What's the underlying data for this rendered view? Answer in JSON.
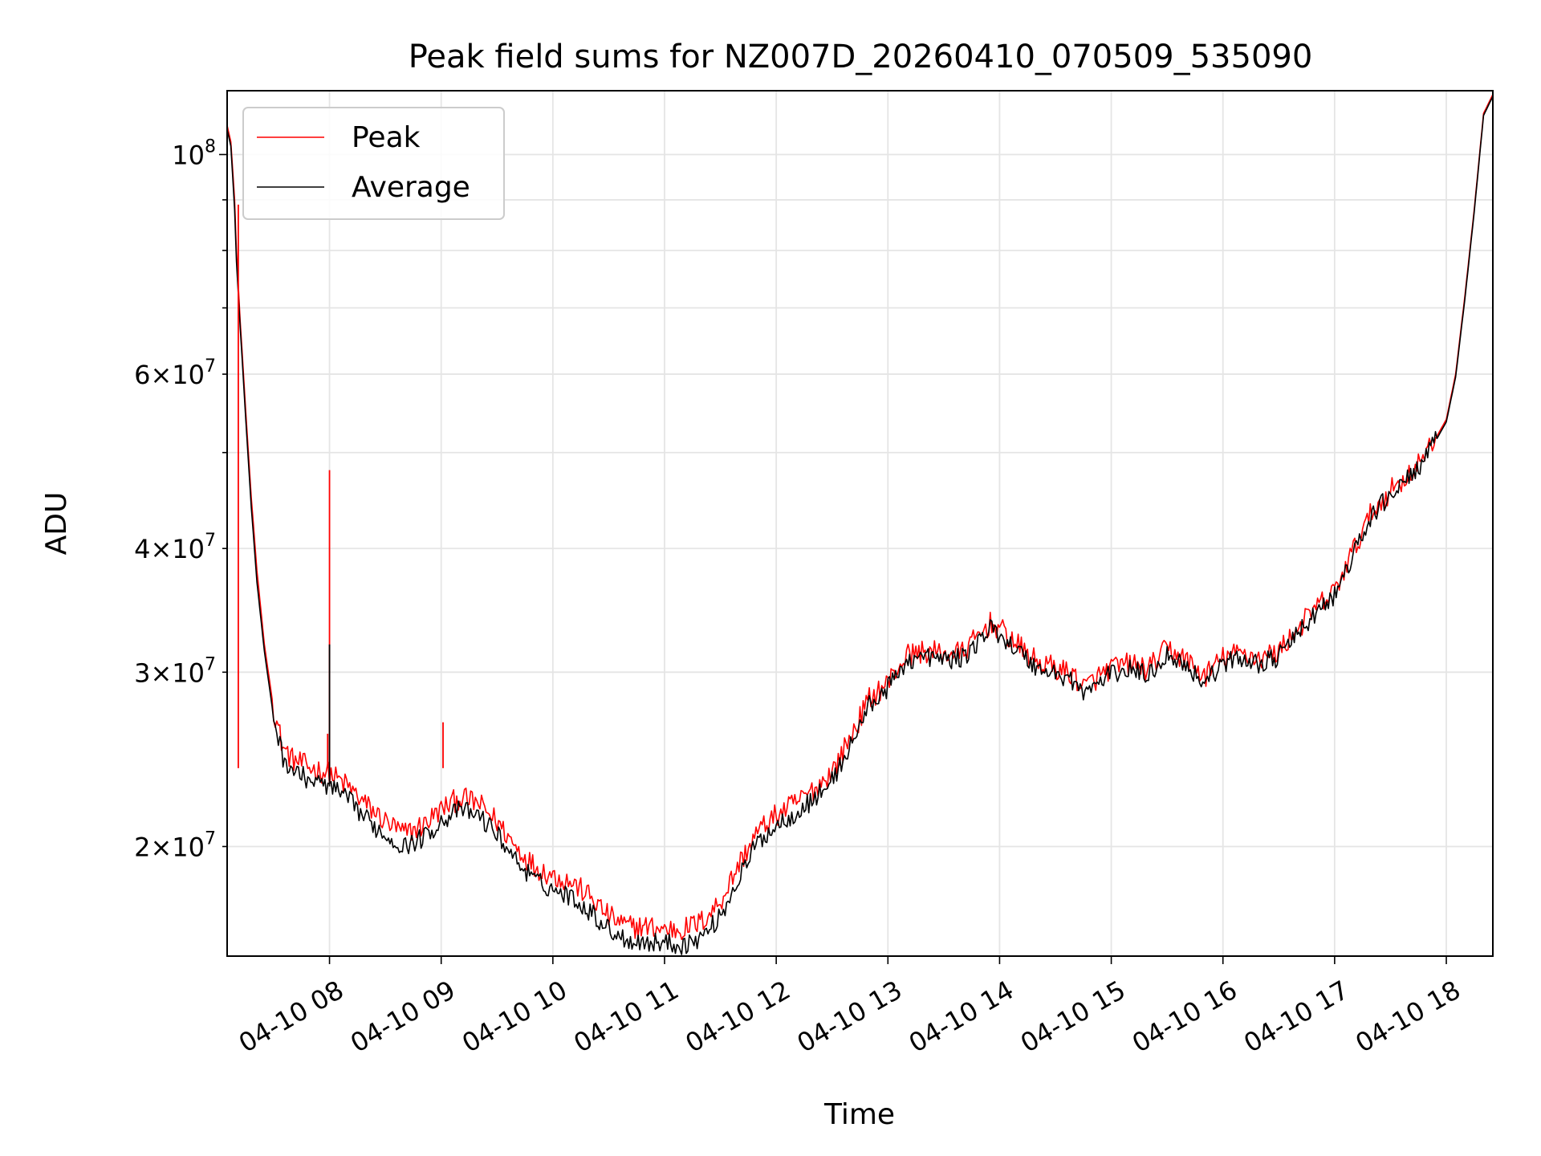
{
  "chart_data": {
    "type": "line",
    "title": "Peak field sums for NZ007D_20260410_070509_535090",
    "xlabel": "Time",
    "ylabel": "ADU",
    "xlim": [
      "2026-04-10 07:05",
      "2026-04-10 18:25"
    ],
    "x_scale": "time",
    "y_scale": "log",
    "ylim": [
      15500000,
      116000000
    ],
    "grid": true,
    "legend_position": "upper-left",
    "x_ticks": [
      {
        "value": "2026-04-10 08:00",
        "label": "04-10 08"
      },
      {
        "value": "2026-04-10 09:00",
        "label": "04-10 09"
      },
      {
        "value": "2026-04-10 10:00",
        "label": "04-10 10"
      },
      {
        "value": "2026-04-10 11:00",
        "label": "04-10 11"
      },
      {
        "value": "2026-04-10 12:00",
        "label": "04-10 12"
      },
      {
        "value": "2026-04-10 13:00",
        "label": "04-10 13"
      },
      {
        "value": "2026-04-10 14:00",
        "label": "04-10 14"
      },
      {
        "value": "2026-04-10 15:00",
        "label": "04-10 15"
      },
      {
        "value": "2026-04-10 16:00",
        "label": "04-10 16"
      },
      {
        "value": "2026-04-10 17:00",
        "label": "04-10 17"
      },
      {
        "value": "2026-04-10 18:00",
        "label": "04-10 18"
      }
    ],
    "y_major_ticks": [
      {
        "value": 100000000,
        "mantissa": "",
        "base": "10",
        "exp": "8"
      }
    ],
    "y_minor_ticks": [
      {
        "value": 20000000,
        "mantissa": "2×",
        "base": "10",
        "exp": "7"
      },
      {
        "value": 30000000,
        "mantissa": "3×",
        "base": "10",
        "exp": "7"
      },
      {
        "value": 40000000,
        "mantissa": "4×",
        "base": "10",
        "exp": "7"
      },
      {
        "value": 50000000,
        "mantissa": "",
        "base": "",
        "exp": ""
      },
      {
        "value": 60000000,
        "mantissa": "6×",
        "base": "10",
        "exp": "7"
      },
      {
        "value": 70000000,
        "mantissa": "",
        "base": "",
        "exp": ""
      },
      {
        "value": 80000000,
        "mantissa": "",
        "base": "",
        "exp": ""
      },
      {
        "value": 90000000,
        "mantissa": "",
        "base": "",
        "exp": ""
      }
    ],
    "series": [
      {
        "name": "Peak",
        "color": "#ff0000",
        "points": [
          [
            "2026-04-10 07:05",
            107000000
          ],
          [
            "2026-04-10 07:07",
            103000000
          ],
          [
            "2026-04-10 07:09",
            90000000
          ],
          [
            "2026-04-10 07:10",
            80000000
          ],
          [
            "2026-04-10 07:12",
            68000000
          ],
          [
            "2026-04-10 07:15",
            55000000
          ],
          [
            "2026-04-10 07:18",
            45000000
          ],
          [
            "2026-04-10 07:21",
            38000000
          ],
          [
            "2026-04-10 07:25",
            32000000
          ],
          [
            "2026-04-10 07:30",
            27500000
          ],
          [
            "2026-04-10 07:35",
            25200000
          ],
          [
            "2026-04-10 07:40",
            24500000
          ],
          [
            "2026-04-10 07:50",
            24000000
          ],
          [
            "2026-04-10 08:00",
            23700000
          ],
          [
            "2026-04-10 08:10",
            23000000
          ],
          [
            "2026-04-10 08:20",
            22000000
          ],
          [
            "2026-04-10 08:30",
            21200000
          ],
          [
            "2026-04-10 08:40",
            20600000
          ],
          [
            "2026-04-10 08:50",
            21000000
          ],
          [
            "2026-04-10 09:00",
            21800000
          ],
          [
            "2026-04-10 09:10",
            22400000
          ],
          [
            "2026-04-10 09:20",
            22100000
          ],
          [
            "2026-04-10 09:30",
            21200000
          ],
          [
            "2026-04-10 09:40",
            20000000
          ],
          [
            "2026-04-10 09:50",
            19100000
          ],
          [
            "2026-04-10 10:00",
            18700000
          ],
          [
            "2026-04-10 10:10",
            18400000
          ],
          [
            "2026-04-10 10:20",
            17800000
          ],
          [
            "2026-04-10 10:30",
            17000000
          ],
          [
            "2026-04-10 10:40",
            16600000
          ],
          [
            "2026-04-10 10:50",
            16600000
          ],
          [
            "2026-04-10 11:00",
            16500000
          ],
          [
            "2026-04-10 11:10",
            16500000
          ],
          [
            "2026-04-10 11:20",
            16800000
          ],
          [
            "2026-04-10 11:30",
            17600000
          ],
          [
            "2026-04-10 11:40",
            19200000
          ],
          [
            "2026-04-10 11:50",
            20700000
          ],
          [
            "2026-04-10 12:00",
            21500000
          ],
          [
            "2026-04-10 12:10",
            22100000
          ],
          [
            "2026-04-10 12:20",
            22800000
          ],
          [
            "2026-04-10 12:30",
            23800000
          ],
          [
            "2026-04-10 12:40",
            25800000
          ],
          [
            "2026-04-10 12:50",
            28200000
          ],
          [
            "2026-04-10 13:00",
            29300000
          ],
          [
            "2026-04-10 13:10",
            31200000
          ],
          [
            "2026-04-10 13:20",
            31500000
          ],
          [
            "2026-04-10 13:30",
            31300000
          ],
          [
            "2026-04-10 13:40",
            31400000
          ],
          [
            "2026-04-10 13:50",
            32800000
          ],
          [
            "2026-04-10 13:55",
            33600000
          ],
          [
            "2026-04-10 14:00",
            33200000
          ],
          [
            "2026-04-10 14:10",
            31900000
          ],
          [
            "2026-04-10 14:20",
            30700000
          ],
          [
            "2026-04-10 14:30",
            30300000
          ],
          [
            "2026-04-10 14:40",
            29800000
          ],
          [
            "2026-04-10 14:45",
            28900000
          ],
          [
            "2026-04-10 14:50",
            29400000
          ],
          [
            "2026-04-10 15:00",
            30300000
          ],
          [
            "2026-04-10 15:10",
            30600000
          ],
          [
            "2026-04-10 15:20",
            30200000
          ],
          [
            "2026-04-10 15:30",
            31700000
          ],
          [
            "2026-04-10 15:40",
            30900000
          ],
          [
            "2026-04-10 15:50",
            29700000
          ],
          [
            "2026-04-10 16:00",
            31000000
          ],
          [
            "2026-04-10 16:10",
            31400000
          ],
          [
            "2026-04-10 16:20",
            31000000
          ],
          [
            "2026-04-10 16:30",
            31500000
          ],
          [
            "2026-04-10 16:40",
            33200000
          ],
          [
            "2026-04-10 16:50",
            34800000
          ],
          [
            "2026-04-10 17:00",
            36200000
          ],
          [
            "2026-04-10 17:10",
            39800000
          ],
          [
            "2026-04-10 17:20",
            43500000
          ],
          [
            "2026-04-10 17:30",
            45800000
          ],
          [
            "2026-04-10 17:40",
            47500000
          ],
          [
            "2026-04-10 17:50",
            50000000
          ],
          [
            "2026-04-10 18:00",
            54000000
          ],
          [
            "2026-04-10 18:05",
            60000000
          ],
          [
            "2026-04-10 18:10",
            72000000
          ],
          [
            "2026-04-10 18:15",
            88000000
          ],
          [
            "2026-04-10 18:20",
            110000000
          ],
          [
            "2026-04-10 18:25",
            115000000
          ]
        ]
      },
      {
        "name": "Average",
        "color": "#000000",
        "points": [
          [
            "2026-04-10 07:05",
            106000000
          ],
          [
            "2026-04-10 07:07",
            102000000
          ],
          [
            "2026-04-10 07:09",
            88000000
          ],
          [
            "2026-04-10 07:10",
            78000000
          ],
          [
            "2026-04-10 07:12",
            67000000
          ],
          [
            "2026-04-10 07:15",
            54000000
          ],
          [
            "2026-04-10 07:18",
            44000000
          ],
          [
            "2026-04-10 07:21",
            37000000
          ],
          [
            "2026-04-10 07:25",
            31500000
          ],
          [
            "2026-04-10 07:30",
            27000000
          ],
          [
            "2026-04-10 07:35",
            24600000
          ],
          [
            "2026-04-10 07:40",
            23900000
          ],
          [
            "2026-04-10 07:50",
            23300000
          ],
          [
            "2026-04-10 08:00",
            23000000
          ],
          [
            "2026-04-10 08:10",
            22300000
          ],
          [
            "2026-04-10 08:20",
            21300000
          ],
          [
            "2026-04-10 08:30",
            20500000
          ],
          [
            "2026-04-10 08:40",
            20000000
          ],
          [
            "2026-04-10 08:50",
            20400000
          ],
          [
            "2026-04-10 09:00",
            21200000
          ],
          [
            "2026-04-10 09:10",
            21800000
          ],
          [
            "2026-04-10 09:20",
            21500000
          ],
          [
            "2026-04-10 09:30",
            20600000
          ],
          [
            "2026-04-10 09:40",
            19400000
          ],
          [
            "2026-04-10 09:50",
            18500000
          ],
          [
            "2026-04-10 10:00",
            18100000
          ],
          [
            "2026-04-10 10:10",
            17800000
          ],
          [
            "2026-04-10 10:20",
            17200000
          ],
          [
            "2026-04-10 10:30",
            16500000
          ],
          [
            "2026-04-10 10:40",
            16100000
          ],
          [
            "2026-04-10 10:50",
            16000000
          ],
          [
            "2026-04-10 11:00",
            16000000
          ],
          [
            "2026-04-10 11:10",
            15900000
          ],
          [
            "2026-04-10 11:20",
            16200000
          ],
          [
            "2026-04-10 11:30",
            17000000
          ],
          [
            "2026-04-10 11:40",
            18600000
          ],
          [
            "2026-04-10 11:50",
            20200000
          ],
          [
            "2026-04-10 12:00",
            21000000
          ],
          [
            "2026-04-10 12:10",
            21600000
          ],
          [
            "2026-04-10 12:20",
            22300000
          ],
          [
            "2026-04-10 12:30",
            23300000
          ],
          [
            "2026-04-10 12:40",
            25300000
          ],
          [
            "2026-04-10 12:50",
            27800000
          ],
          [
            "2026-04-10 13:00",
            28900000
          ],
          [
            "2026-04-10 13:10",
            30800000
          ],
          [
            "2026-04-10 13:20",
            31100000
          ],
          [
            "2026-04-10 13:30",
            30900000
          ],
          [
            "2026-04-10 13:40",
            31000000
          ],
          [
            "2026-04-10 13:50",
            32400000
          ],
          [
            "2026-04-10 13:55",
            33200000
          ],
          [
            "2026-04-10 14:00",
            32800000
          ],
          [
            "2026-04-10 14:10",
            31500000
          ],
          [
            "2026-04-10 14:20",
            30300000
          ],
          [
            "2026-04-10 14:30",
            29900000
          ],
          [
            "2026-04-10 14:40",
            29400000
          ],
          [
            "2026-04-10 14:45",
            28500000
          ],
          [
            "2026-04-10 14:50",
            29000000
          ],
          [
            "2026-04-10 15:00",
            29900000
          ],
          [
            "2026-04-10 15:10",
            30200000
          ],
          [
            "2026-04-10 15:20",
            29800000
          ],
          [
            "2026-04-10 15:30",
            31300000
          ],
          [
            "2026-04-10 15:40",
            30500000
          ],
          [
            "2026-04-10 15:50",
            29300000
          ],
          [
            "2026-04-10 16:00",
            30600000
          ],
          [
            "2026-04-10 16:10",
            31000000
          ],
          [
            "2026-04-10 16:20",
            30600000
          ],
          [
            "2026-04-10 16:30",
            31100000
          ],
          [
            "2026-04-10 16:40",
            32800000
          ],
          [
            "2026-04-10 16:50",
            34400000
          ],
          [
            "2026-04-10 17:00",
            35800000
          ],
          [
            "2026-04-10 17:10",
            39400000
          ],
          [
            "2026-04-10 17:20",
            43100000
          ],
          [
            "2026-04-10 17:30",
            45400000
          ],
          [
            "2026-04-10 17:40",
            47100000
          ],
          [
            "2026-04-10 17:50",
            49700000
          ],
          [
            "2026-04-10 18:00",
            53700000
          ],
          [
            "2026-04-10 18:05",
            59600000
          ],
          [
            "2026-04-10 18:10",
            71500000
          ],
          [
            "2026-04-10 18:15",
            87500000
          ],
          [
            "2026-04-10 18:20",
            109500000
          ],
          [
            "2026-04-10 18:25",
            114500000
          ]
        ]
      }
    ],
    "annotations": [
      {
        "series": "Peak",
        "x": "2026-04-10 07:11",
        "y": 89000000
      },
      {
        "series": "Peak",
        "x": "2026-04-10 07:59",
        "y": 26000000
      },
      {
        "series": "Peak",
        "x": "2026-04-10 08:00",
        "y": 48000000
      },
      {
        "series": "Peak",
        "x": "2026-04-10 09:01",
        "y": 26700000
      },
      {
        "series": "Average",
        "x": "2026-04-10 08:00",
        "y": 32000000
      }
    ]
  }
}
